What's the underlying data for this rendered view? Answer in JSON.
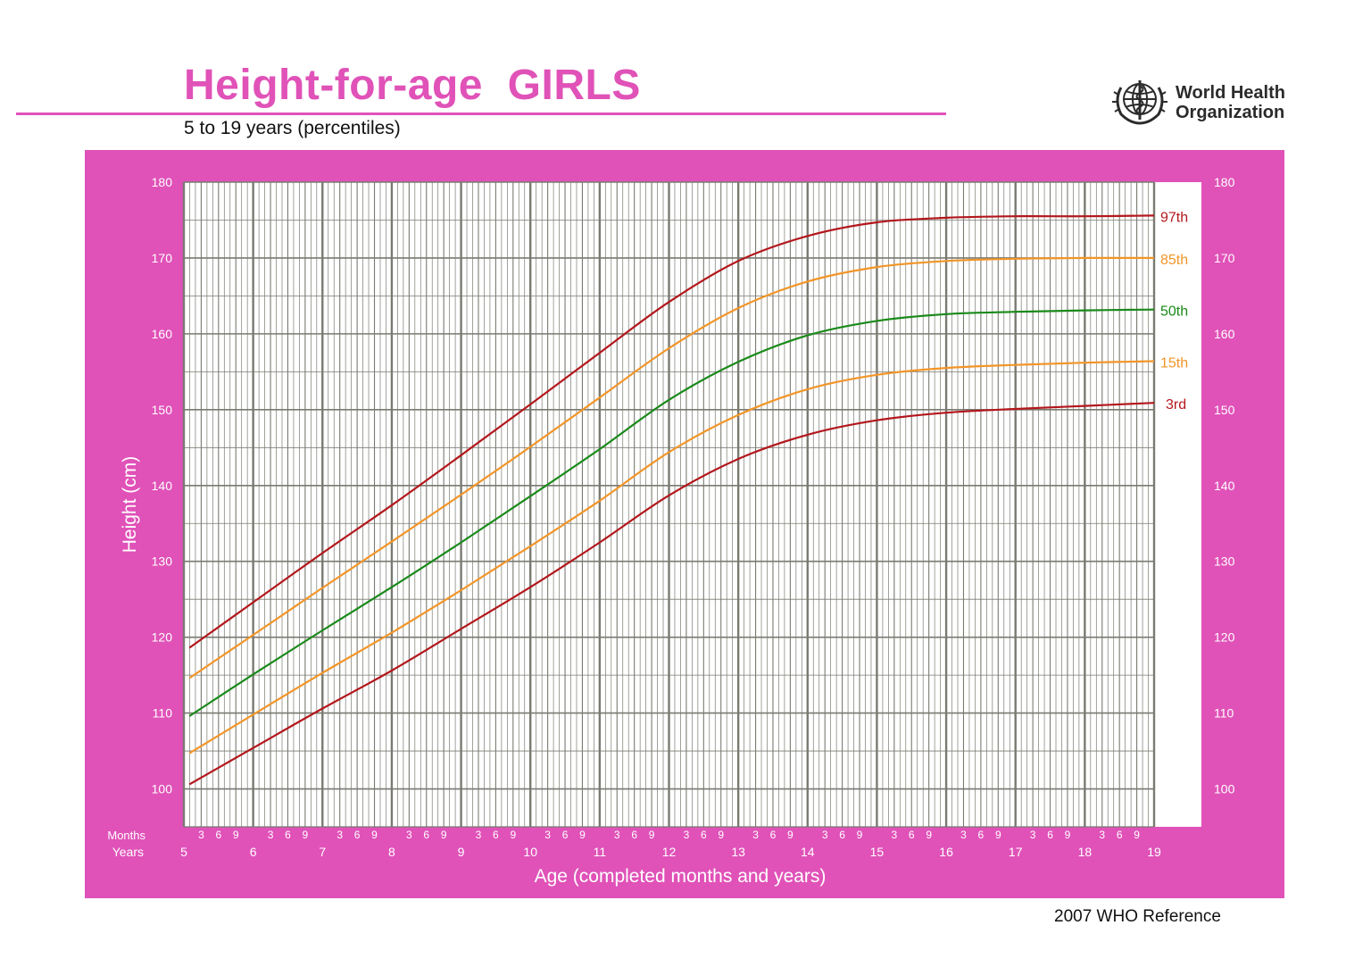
{
  "header": {
    "title": "Height-for-age  GIRLS",
    "subtitle": "5 to 19 years (percentiles)"
  },
  "logo": {
    "icon": "who-emblem-icon",
    "line1": "World Health",
    "line2": "Organization"
  },
  "footer": {
    "text": "2007 WHO Reference"
  },
  "colors": {
    "panel": "#e052b8",
    "title": "#e052b8",
    "grid": "#7a7a72",
    "p3_97": "#b3171c",
    "p15_85": "#f29528",
    "p50": "#1a8a1a"
  },
  "chart_data": {
    "type": "line",
    "title": "Height-for-age  GIRLS",
    "subtitle": "5 to 19 years (percentiles)",
    "xlabel": "Age (completed months and years)",
    "ylabel": "Height (cm)",
    "xlim": [
      5,
      19
    ],
    "ylim": [
      95,
      180
    ],
    "grid": true,
    "x_ticks_years": [
      "5",
      "6",
      "7",
      "8",
      "9",
      "10",
      "11",
      "12",
      "13",
      "14",
      "15",
      "16",
      "17",
      "18",
      "19"
    ],
    "x_ticks_months": [
      "3",
      "6",
      "9"
    ],
    "x_row_labels": {
      "months": "Months",
      "years": "Years"
    },
    "y_ticks": [
      "100",
      "110",
      "120",
      "130",
      "140",
      "150",
      "160",
      "170",
      "180"
    ],
    "x": [
      5.08,
      6,
      7,
      8,
      9,
      10,
      11,
      12,
      13,
      14,
      15,
      16,
      17,
      18,
      19
    ],
    "series": [
      {
        "name": "97th",
        "color": "#b3171c",
        "values": [
          118.6,
          124.6,
          131.1,
          137.4,
          144.0,
          150.7,
          157.5,
          164.2,
          169.6,
          172.9,
          174.7,
          175.3,
          175.5,
          175.5,
          175.6
        ]
      },
      {
        "name": "85th",
        "color": "#f29528",
        "values": [
          114.6,
          120.3,
          126.5,
          132.6,
          138.8,
          145.1,
          151.6,
          158.1,
          163.4,
          166.9,
          168.8,
          169.6,
          169.9,
          170.0,
          170.0
        ]
      },
      {
        "name": "50th",
        "color": "#1a8a1a",
        "values": [
          109.6,
          115.1,
          120.9,
          126.6,
          132.5,
          138.6,
          144.8,
          151.3,
          156.3,
          159.8,
          161.7,
          162.6,
          162.9,
          163.1,
          163.2
        ]
      },
      {
        "name": "15th",
        "color": "#f29528",
        "values": [
          104.7,
          109.8,
          115.3,
          120.6,
          126.2,
          132.0,
          138.0,
          144.4,
          149.3,
          152.7,
          154.6,
          155.5,
          155.9,
          156.2,
          156.4
        ]
      },
      {
        "name": "3rd",
        "color": "#b3171c",
        "values": [
          100.6,
          105.4,
          110.6,
          115.6,
          121.1,
          126.6,
          132.5,
          138.7,
          143.5,
          146.7,
          148.6,
          149.6,
          150.1,
          150.5,
          150.9
        ]
      }
    ]
  }
}
